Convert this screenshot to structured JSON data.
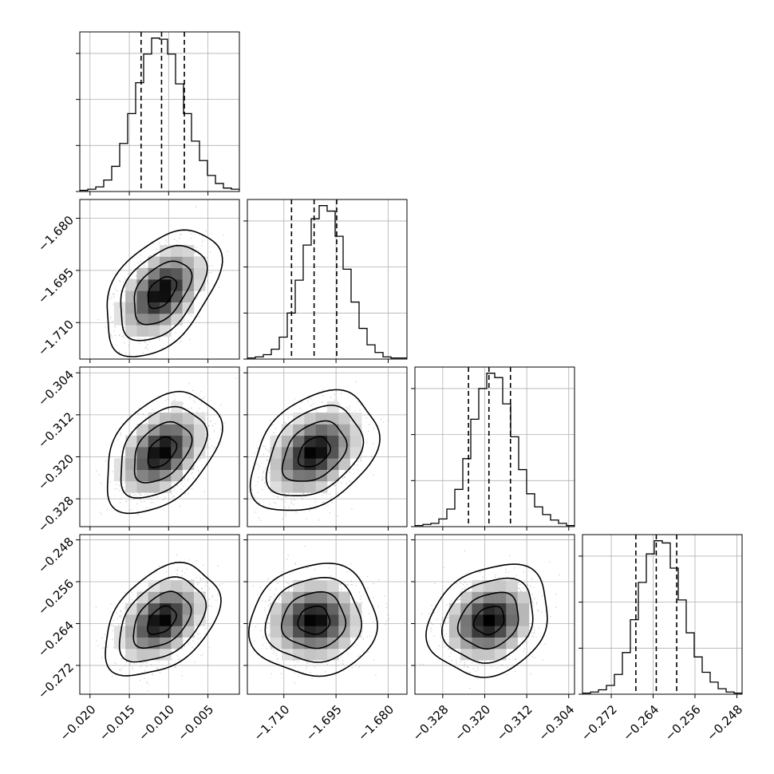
{
  "chart_data": {
    "type": "corner",
    "grid": true,
    "histogram_style": "step",
    "contour_levels": 4,
    "parameters": [
      {
        "ticks": [
          -0.02,
          -0.015,
          -0.01,
          -0.005
        ],
        "range": [
          -0.0213,
          -0.001
        ],
        "mean": -0.0109,
        "sd": 0.0026,
        "quantiles": [
          -0.0135,
          -0.0109,
          -0.008
        ],
        "hist_counts": [
          1,
          2,
          4,
          10,
          22,
          42,
          68,
          95,
          120,
          134,
          133,
          120,
          94,
          68,
          44,
          27,
          14,
          7,
          3,
          2
        ]
      },
      {
        "ticks": [
          -1.71,
          -1.695,
          -1.68
        ],
        "range": [
          -1.7205,
          -1.6746
        ],
        "mean": -1.7013,
        "sd": 0.0065,
        "quantiles": [
          -1.7078,
          -1.7013,
          -1.6948
        ],
        "hist_counts": [
          1,
          2,
          4,
          9,
          20,
          42,
          72,
          104,
          128,
          140,
          135,
          112,
          82,
          52,
          28,
          13,
          6,
          2,
          1,
          1
        ]
      },
      {
        "ticks": [
          -0.328,
          -0.32,
          -0.312,
          -0.304
        ],
        "range": [
          -0.3333,
          -0.3029
        ],
        "mean": -0.3191,
        "sd": 0.0041,
        "quantiles": [
          -0.3231,
          -0.3192,
          -0.3151
        ],
        "hist_counts": [
          1,
          2,
          3,
          7,
          16,
          34,
          62,
          98,
          126,
          140,
          136,
          112,
          82,
          52,
          30,
          18,
          11,
          6,
          3,
          1
        ]
      },
      {
        "ticks": [
          -0.272,
          -0.264,
          -0.256,
          -0.248
        ],
        "range": [
          -0.2775,
          -0.247
        ],
        "mean": -0.2634,
        "sd": 0.0038,
        "quantiles": [
          -0.2673,
          -0.2634,
          -0.2595
        ],
        "hist_counts": [
          1,
          2,
          4,
          8,
          18,
          38,
          68,
          102,
          128,
          140,
          138,
          115,
          86,
          56,
          34,
          20,
          11,
          5,
          2,
          1
        ]
      }
    ],
    "correlations": [
      {
        "row": 1,
        "col": 0,
        "rho": 0.45
      },
      {
        "row": 2,
        "col": 0,
        "rho": 0.4
      },
      {
        "row": 2,
        "col": 1,
        "rho": 0.35
      },
      {
        "row": 3,
        "col": 0,
        "rho": 0.4
      },
      {
        "row": 3,
        "col": 1,
        "rho": 0.05
      },
      {
        "row": 3,
        "col": 2,
        "rho": 0.2
      }
    ],
    "colors": {
      "line": "#000000",
      "grid": "#b0b0b0",
      "scatter": "#9a9a9a",
      "density_max": "#000000",
      "background": "#ffffff"
    }
  }
}
